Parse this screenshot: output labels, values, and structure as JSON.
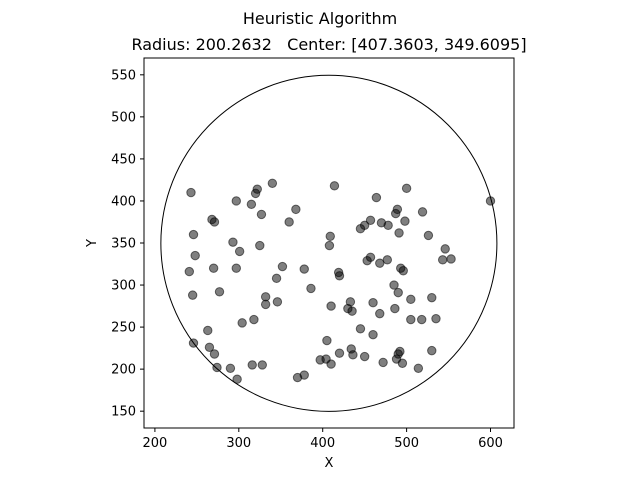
{
  "chart_data": {
    "type": "scatter",
    "title": "Heuristic Algorithm",
    "subtitle": "Radius: 200.2632   Center: [407.3603, 349.6095]",
    "xlabel": "X",
    "ylabel": "Y",
    "xlim": [
      187,
      628
    ],
    "ylim": [
      130,
      570
    ],
    "xticks": [
      200,
      300,
      400,
      500,
      600
    ],
    "yticks": [
      150,
      200,
      250,
      300,
      350,
      400,
      450,
      500,
      550
    ],
    "grid": false,
    "point_color": "#000000",
    "point_opacity": 0.5,
    "circle": {
      "cx": 407.3603,
      "cy": 349.6095,
      "r": 200.2632
    },
    "points": [
      {
        "x": 243,
        "y": 410
      },
      {
        "x": 246,
        "y": 360
      },
      {
        "x": 248,
        "y": 335
      },
      {
        "x": 241,
        "y": 316
      },
      {
        "x": 245,
        "y": 288
      },
      {
        "x": 246,
        "y": 231
      },
      {
        "x": 263,
        "y": 246
      },
      {
        "x": 265,
        "y": 226
      },
      {
        "x": 271,
        "y": 218
      },
      {
        "x": 274,
        "y": 202
      },
      {
        "x": 268,
        "y": 378
      },
      {
        "x": 271,
        "y": 375
      },
      {
        "x": 270,
        "y": 320
      },
      {
        "x": 277,
        "y": 292
      },
      {
        "x": 290,
        "y": 201
      },
      {
        "x": 298,
        "y": 188
      },
      {
        "x": 297,
        "y": 400
      },
      {
        "x": 293,
        "y": 351
      },
      {
        "x": 301,
        "y": 340
      },
      {
        "x": 297,
        "y": 320
      },
      {
        "x": 304,
        "y": 255
      },
      {
        "x": 315,
        "y": 396
      },
      {
        "x": 320,
        "y": 409
      },
      {
        "x": 322,
        "y": 414
      },
      {
        "x": 325,
        "y": 347
      },
      {
        "x": 327,
        "y": 384
      },
      {
        "x": 340,
        "y": 421
      },
      {
        "x": 332,
        "y": 286
      },
      {
        "x": 332,
        "y": 277
      },
      {
        "x": 345,
        "y": 308
      },
      {
        "x": 346,
        "y": 280
      },
      {
        "x": 318,
        "y": 259
      },
      {
        "x": 316,
        "y": 205
      },
      {
        "x": 328,
        "y": 205
      },
      {
        "x": 352,
        "y": 322
      },
      {
        "x": 360,
        "y": 375
      },
      {
        "x": 368,
        "y": 390
      },
      {
        "x": 370,
        "y": 190
      },
      {
        "x": 378,
        "y": 193
      },
      {
        "x": 378,
        "y": 319
      },
      {
        "x": 386,
        "y": 296
      },
      {
        "x": 397,
        "y": 211
      },
      {
        "x": 404,
        "y": 212
      },
      {
        "x": 410,
        "y": 206
      },
      {
        "x": 405,
        "y": 234
      },
      {
        "x": 408,
        "y": 347
      },
      {
        "x": 409,
        "y": 358
      },
      {
        "x": 410,
        "y": 275
      },
      {
        "x": 414,
        "y": 418
      },
      {
        "x": 419,
        "y": 315
      },
      {
        "x": 420,
        "y": 311
      },
      {
        "x": 420,
        "y": 219
      },
      {
        "x": 430,
        "y": 272
      },
      {
        "x": 433,
        "y": 280
      },
      {
        "x": 435,
        "y": 269
      },
      {
        "x": 434,
        "y": 224
      },
      {
        "x": 436,
        "y": 217
      },
      {
        "x": 445,
        "y": 367
      },
      {
        "x": 450,
        "y": 371
      },
      {
        "x": 445,
        "y": 248
      },
      {
        "x": 450,
        "y": 215
      },
      {
        "x": 453,
        "y": 329
      },
      {
        "x": 457,
        "y": 333
      },
      {
        "x": 457,
        "y": 377
      },
      {
        "x": 460,
        "y": 279
      },
      {
        "x": 460,
        "y": 241
      },
      {
        "x": 464,
        "y": 404
      },
      {
        "x": 468,
        "y": 326
      },
      {
        "x": 470,
        "y": 374
      },
      {
        "x": 468,
        "y": 266
      },
      {
        "x": 472,
        "y": 208
      },
      {
        "x": 477,
        "y": 330
      },
      {
        "x": 478,
        "y": 371
      },
      {
        "x": 485,
        "y": 300
      },
      {
        "x": 487,
        "y": 385
      },
      {
        "x": 489,
        "y": 390
      },
      {
        "x": 491,
        "y": 362
      },
      {
        "x": 486,
        "y": 272
      },
      {
        "x": 490,
        "y": 291
      },
      {
        "x": 488,
        "y": 212
      },
      {
        "x": 490,
        "y": 218
      },
      {
        "x": 492,
        "y": 221
      },
      {
        "x": 495,
        "y": 207
      },
      {
        "x": 493,
        "y": 320
      },
      {
        "x": 496,
        "y": 317
      },
      {
        "x": 498,
        "y": 376
      },
      {
        "x": 500,
        "y": 415
      },
      {
        "x": 505,
        "y": 283
      },
      {
        "x": 505,
        "y": 259
      },
      {
        "x": 514,
        "y": 201
      },
      {
        "x": 519,
        "y": 387
      },
      {
        "x": 518,
        "y": 259
      },
      {
        "x": 526,
        "y": 359
      },
      {
        "x": 530,
        "y": 285
      },
      {
        "x": 530,
        "y": 222
      },
      {
        "x": 535,
        "y": 260
      },
      {
        "x": 543,
        "y": 330
      },
      {
        "x": 546,
        "y": 343
      },
      {
        "x": 553,
        "y": 331
      },
      {
        "x": 600,
        "y": 400
      }
    ]
  }
}
